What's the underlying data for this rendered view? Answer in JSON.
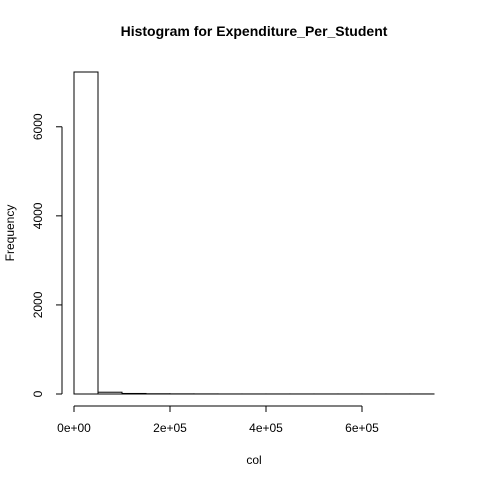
{
  "chart_data": {
    "type": "bar",
    "title": "Histogram for  Expenditure_Per_Student",
    "xlabel": "col",
    "ylabel": "Frequency",
    "bin_width": 50000,
    "bins": [
      {
        "start": 0,
        "end": 50000,
        "count": 7230
      },
      {
        "start": 50000,
        "end": 100000,
        "count": 40
      },
      {
        "start": 100000,
        "end": 150000,
        "count": 12
      },
      {
        "start": 150000,
        "end": 200000,
        "count": 5
      },
      {
        "start": 200000,
        "end": 250000,
        "count": 3
      },
      {
        "start": 250000,
        "end": 300000,
        "count": 2
      },
      {
        "start": 300000,
        "end": 350000,
        "count": 1
      },
      {
        "start": 350000,
        "end": 400000,
        "count": 1
      },
      {
        "start": 400000,
        "end": 450000,
        "count": 1
      },
      {
        "start": 450000,
        "end": 500000,
        "count": 1
      },
      {
        "start": 500000,
        "end": 550000,
        "count": 1
      },
      {
        "start": 550000,
        "end": 600000,
        "count": 1
      },
      {
        "start": 600000,
        "end": 650000,
        "count": 1
      },
      {
        "start": 650000,
        "end": 700000,
        "count": 1
      },
      {
        "start": 700000,
        "end": 750000,
        "count": 1
      }
    ],
    "xlim": [
      0,
      750000
    ],
    "ylim": [
      0,
      7230
    ],
    "x_ticks": [
      {
        "value": 0,
        "label": "0e+00"
      },
      {
        "value": 200000,
        "label": "2e+05"
      },
      {
        "value": 400000,
        "label": "4e+05"
      },
      {
        "value": 600000,
        "label": "6e+05"
      }
    ],
    "y_ticks": [
      {
        "value": 0,
        "label": "0"
      },
      {
        "value": 2000,
        "label": "2000"
      },
      {
        "value": 4000,
        "label": "4000"
      },
      {
        "value": 6000,
        "label": "6000"
      }
    ],
    "grid": false,
    "legend": "none"
  }
}
